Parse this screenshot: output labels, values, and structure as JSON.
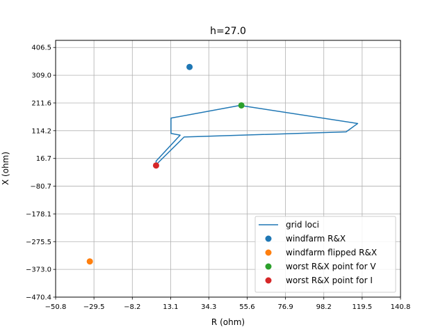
{
  "chart_data": {
    "type": "scatter",
    "title": "h=27.0",
    "xlabel": "R (ohm)",
    "ylabel": "X (ohm)",
    "xlim": [
      -50.8,
      140.8
    ],
    "ylim": [
      -470.4,
      431.5
    ],
    "xticks": [
      -50.8,
      -29.5,
      -8.2,
      13.1,
      34.3,
      55.6,
      76.9,
      98.2,
      119.5,
      140.8
    ],
    "xtick_labels": [
      "−50.8",
      "−29.5",
      "−8.2",
      "13.1",
      "34.3",
      "55.6",
      "76.9",
      "98.2",
      "119.5",
      "140.8"
    ],
    "yticks": [
      406.5,
      309.0,
      211.6,
      114.2,
      16.7,
      -80.7,
      -178.1,
      -275.5,
      -373.0,
      -470.4
    ],
    "ytick_labels": [
      "406.5",
      "309.0",
      "211.6",
      "114.2",
      "16.7",
      "−80.7",
      "−178.1",
      "−275.5",
      "−373.0",
      "−470.4"
    ],
    "grid": true,
    "legend_position": "lower-right",
    "series": [
      {
        "name": "grid loci",
        "kind": "line",
        "color": "#1f77b4",
        "points": [
          [
            5.0,
            -7.8
          ],
          [
            5.0,
            7.5
          ],
          [
            18.4,
            98.5
          ],
          [
            13.3,
            104.5
          ],
          [
            13.3,
            158.5
          ],
          [
            51.6,
            203.0
          ],
          [
            117.0,
            139.5
          ],
          [
            110.6,
            110.0
          ],
          [
            20.6,
            92.0
          ],
          [
            5.0,
            -5.0
          ],
          [
            5.0,
            -7.8
          ]
        ]
      },
      {
        "name": "windfarm R&X",
        "kind": "point",
        "color": "#1f77b4",
        "points": [
          [
            23.6,
            338.0
          ]
        ]
      },
      {
        "name": "windfarm flipped R&X",
        "kind": "point",
        "color": "#ff7f0e",
        "points": [
          [
            -31.8,
            -345.0
          ]
        ]
      },
      {
        "name": "worst R&X point for V",
        "kind": "point",
        "color": "#2ca02c",
        "points": [
          [
            52.4,
            203.0
          ]
        ]
      },
      {
        "name": "worst R&X point for I",
        "kind": "point",
        "color": "#d62728",
        "points": [
          [
            5.0,
            -8.0
          ]
        ]
      }
    ]
  }
}
